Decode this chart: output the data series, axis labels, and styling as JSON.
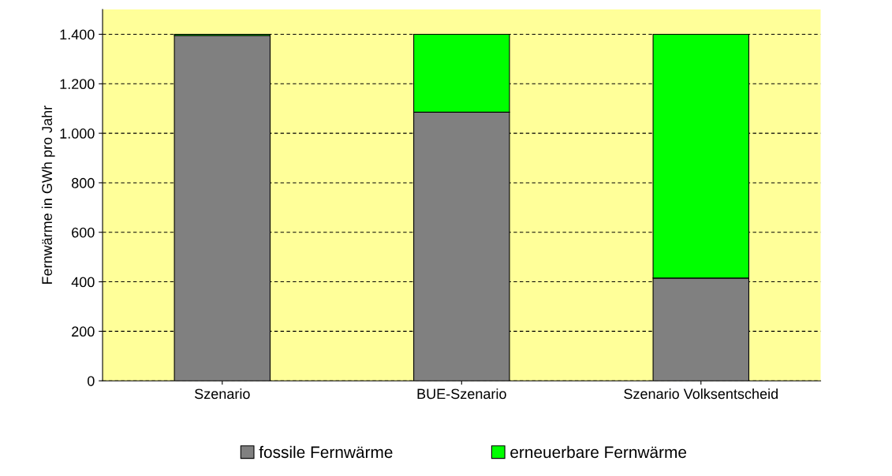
{
  "chart_data": {
    "type": "bar",
    "stacked": true,
    "ylabel": "Fernwärme in GWh pro Jahr",
    "categories": [
      "Szenario",
      "BUE-Szenario",
      "Szenario Volksentscheid"
    ],
    "series": [
      {
        "name": "fossile Fernwärme",
        "color": "#808080",
        "values": [
          1395,
          1085,
          415
        ]
      },
      {
        "name": "erneuerbare Fernwärme",
        "color": "#00ff00",
        "values": [
          5,
          315,
          985
        ]
      }
    ],
    "ylim": [
      0,
      1500
    ],
    "yticks": [
      0,
      200,
      400,
      600,
      800,
      {
        "value": 1000,
        "label": "1.000"
      },
      {
        "value": 1200,
        "label": "1.200"
      },
      {
        "value": 1400,
        "label": "1.400"
      }
    ],
    "grid": "y",
    "legend": "bottom"
  }
}
